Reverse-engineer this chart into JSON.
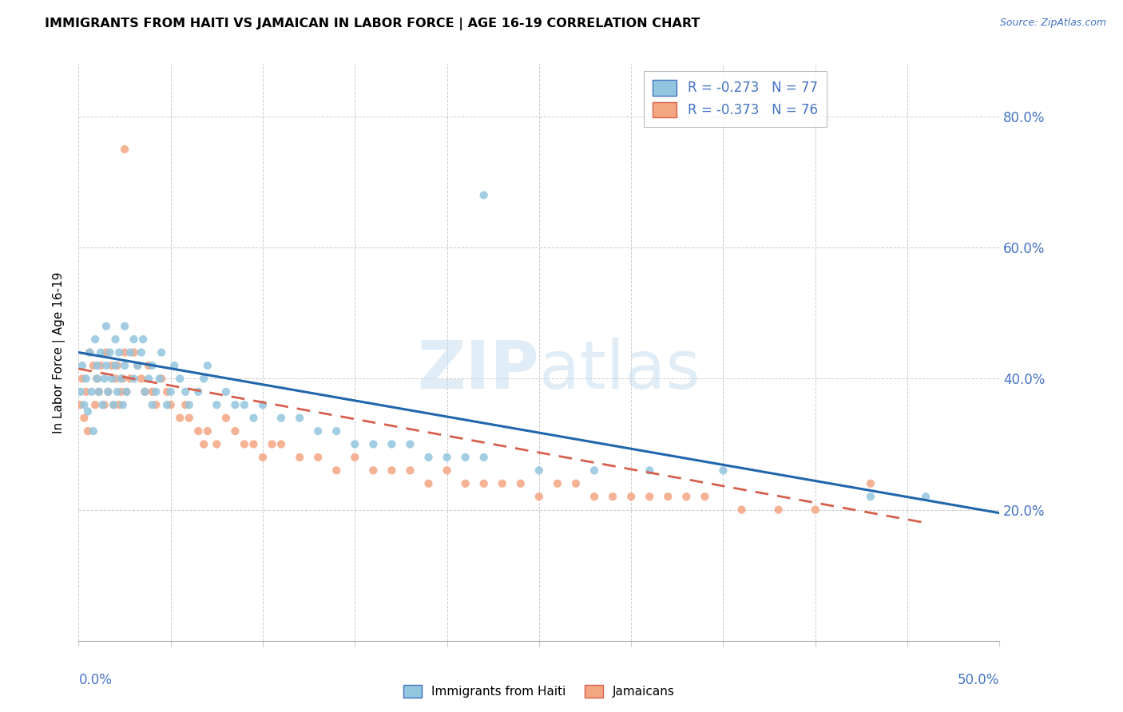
{
  "title": "IMMIGRANTS FROM HAITI VS JAMAICAN IN LABOR FORCE | AGE 16-19 CORRELATION CHART",
  "source": "Source: ZipAtlas.com",
  "ylabel": "In Labor Force | Age 16-19",
  "xmin": 0.0,
  "xmax": 0.5,
  "ymin": 0.0,
  "ymax": 0.88,
  "legend_haiti": "R = -0.273   N = 77",
  "legend_jamaican": "R = -0.373   N = 76",
  "haiti_color": "#92c5de",
  "jamaican_color": "#f4a582",
  "haiti_line_color": "#2166ac",
  "jamaican_line_color": "#d6604d",
  "haiti_scatter_x": [
    0.001,
    0.002,
    0.003,
    0.004,
    0.005,
    0.006,
    0.007,
    0.008,
    0.009,
    0.01,
    0.01,
    0.011,
    0.012,
    0.013,
    0.014,
    0.015,
    0.015,
    0.016,
    0.017,
    0.018,
    0.019,
    0.02,
    0.02,
    0.021,
    0.022,
    0.023,
    0.024,
    0.025,
    0.025,
    0.026,
    0.028,
    0.03,
    0.03,
    0.032,
    0.034,
    0.035,
    0.036,
    0.038,
    0.04,
    0.04,
    0.042,
    0.044,
    0.045,
    0.048,
    0.05,
    0.052,
    0.055,
    0.058,
    0.06,
    0.065,
    0.068,
    0.07,
    0.075,
    0.08,
    0.085,
    0.09,
    0.095,
    0.1,
    0.11,
    0.12,
    0.13,
    0.14,
    0.15,
    0.16,
    0.17,
    0.18,
    0.19,
    0.2,
    0.21,
    0.22,
    0.25,
    0.28,
    0.31,
    0.35,
    0.43,
    0.46,
    0.22
  ],
  "haiti_scatter_y": [
    0.38,
    0.42,
    0.36,
    0.4,
    0.35,
    0.44,
    0.38,
    0.32,
    0.46,
    0.4,
    0.42,
    0.38,
    0.44,
    0.36,
    0.4,
    0.48,
    0.42,
    0.38,
    0.44,
    0.4,
    0.36,
    0.46,
    0.42,
    0.38,
    0.44,
    0.4,
    0.36,
    0.48,
    0.42,
    0.38,
    0.44,
    0.46,
    0.4,
    0.42,
    0.44,
    0.46,
    0.38,
    0.4,
    0.42,
    0.36,
    0.38,
    0.4,
    0.44,
    0.36,
    0.38,
    0.42,
    0.4,
    0.38,
    0.36,
    0.38,
    0.4,
    0.42,
    0.36,
    0.38,
    0.36,
    0.36,
    0.34,
    0.36,
    0.34,
    0.34,
    0.32,
    0.32,
    0.3,
    0.3,
    0.3,
    0.3,
    0.28,
    0.28,
    0.28,
    0.28,
    0.26,
    0.26,
    0.26,
    0.26,
    0.22,
    0.22,
    0.68
  ],
  "jamaican_scatter_x": [
    0.001,
    0.002,
    0.003,
    0.004,
    0.005,
    0.006,
    0.008,
    0.009,
    0.01,
    0.011,
    0.012,
    0.014,
    0.015,
    0.016,
    0.018,
    0.019,
    0.02,
    0.021,
    0.022,
    0.023,
    0.024,
    0.025,
    0.026,
    0.028,
    0.03,
    0.032,
    0.034,
    0.036,
    0.038,
    0.04,
    0.042,
    0.045,
    0.048,
    0.05,
    0.055,
    0.058,
    0.06,
    0.065,
    0.068,
    0.07,
    0.075,
    0.08,
    0.085,
    0.09,
    0.095,
    0.1,
    0.105,
    0.11,
    0.12,
    0.13,
    0.14,
    0.15,
    0.16,
    0.17,
    0.18,
    0.19,
    0.2,
    0.21,
    0.22,
    0.23,
    0.24,
    0.25,
    0.26,
    0.27,
    0.28,
    0.29,
    0.3,
    0.31,
    0.32,
    0.33,
    0.34,
    0.36,
    0.38,
    0.4,
    0.43,
    0.025
  ],
  "jamaican_scatter_y": [
    0.36,
    0.4,
    0.34,
    0.38,
    0.32,
    0.44,
    0.42,
    0.36,
    0.4,
    0.38,
    0.42,
    0.36,
    0.44,
    0.38,
    0.42,
    0.36,
    0.4,
    0.42,
    0.36,
    0.38,
    0.4,
    0.44,
    0.38,
    0.4,
    0.44,
    0.42,
    0.4,
    0.38,
    0.42,
    0.38,
    0.36,
    0.4,
    0.38,
    0.36,
    0.34,
    0.36,
    0.34,
    0.32,
    0.3,
    0.32,
    0.3,
    0.34,
    0.32,
    0.3,
    0.3,
    0.28,
    0.3,
    0.3,
    0.28,
    0.28,
    0.26,
    0.28,
    0.26,
    0.26,
    0.26,
    0.24,
    0.26,
    0.24,
    0.24,
    0.24,
    0.24,
    0.22,
    0.24,
    0.24,
    0.22,
    0.22,
    0.22,
    0.22,
    0.22,
    0.22,
    0.22,
    0.2,
    0.2,
    0.2,
    0.24,
    0.75
  ],
  "haiti_line_x": [
    0.0,
    0.5
  ],
  "haiti_line_y": [
    0.44,
    0.195
  ],
  "jamaican_line_x": [
    0.0,
    0.46
  ],
  "jamaican_line_y": [
    0.415,
    0.18
  ]
}
